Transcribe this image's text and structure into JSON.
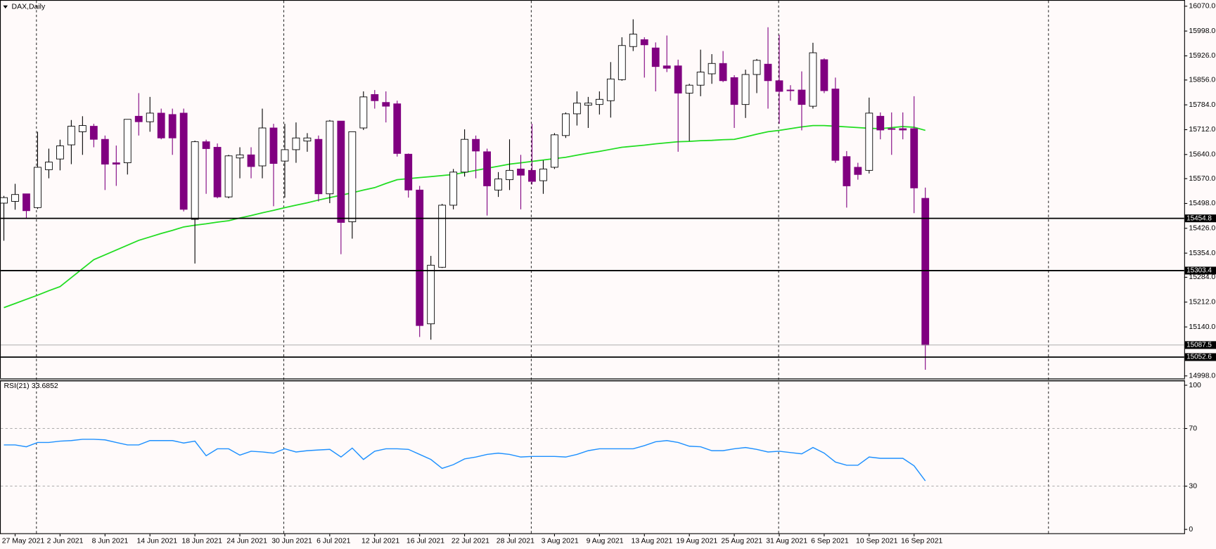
{
  "chart_data": [
    {
      "type": "candlestick",
      "title": "DAX,Daily",
      "categories": [
        null,
        "27 May 2021",
        null,
        null,
        null,
        "2 Jun 2021",
        null,
        null,
        null,
        "8 Jun 2021",
        null,
        null,
        null,
        "14 Jun 2021",
        null,
        null,
        null,
        "18 Jun 2021",
        null,
        null,
        null,
        "24 Jun 2021",
        null,
        null,
        null,
        "30 Jun 2021",
        null,
        null,
        null,
        "6 Jul 2021",
        null,
        null,
        null,
        "12 Jul 2021",
        null,
        null,
        null,
        "16 Jul 2021",
        null,
        null,
        null,
        "22 Jul 2021",
        null,
        null,
        null,
        "28 Jul 2021",
        null,
        null,
        null,
        "3 Aug 2021",
        null,
        null,
        null,
        "9 Aug 2021",
        null,
        null,
        null,
        "13 Aug 2021",
        null,
        null,
        null,
        "19 Aug 2021",
        null,
        null,
        null,
        "25 Aug 2021",
        null,
        null,
        null,
        "31 Aug 2021",
        null,
        null,
        null,
        "6 Sep 2021",
        null,
        null,
        null,
        "10 Sep 2021",
        null,
        null,
        null,
        "16 Sep 2021",
        null
      ],
      "open": [
        15499,
        15504,
        15526,
        15486,
        15596,
        15627,
        15668,
        15706,
        15722,
        15684,
        15616,
        15616,
        15751,
        15735,
        15760,
        15756,
        15760,
        15452,
        15677,
        15661,
        15517,
        15630,
        15639,
        15607,
        15717,
        15621,
        15654,
        15679,
        15684,
        15526,
        15737,
        15445,
        15717,
        15814,
        15791,
        15787,
        15641,
        15537,
        15149,
        15313,
        15493,
        15589,
        15684,
        15648,
        15537,
        15567,
        15598,
        15594,
        15564,
        15603,
        15695,
        15758,
        15783,
        15785,
        15796,
        15857,
        15953,
        15973,
        15949,
        15897,
        15897,
        15818,
        15841,
        15874,
        15904,
        15863,
        15785,
        15872,
        15902,
        15854,
        15827,
        15827,
        15780,
        15915,
        15830,
        15634,
        15603,
        15594,
        15751,
        15715,
        15715,
        15715,
        15513
      ],
      "high": [
        15520,
        15555,
        15526,
        15706,
        15657,
        15683,
        15740,
        15751,
        15729,
        15695,
        15666,
        15742,
        15818,
        15807,
        15773,
        15773,
        15773,
        15680,
        15683,
        15672,
        15639,
        15661,
        15661,
        15773,
        15729,
        15729,
        15733,
        15702,
        15695,
        15740,
        15737,
        15706,
        15823,
        15827,
        15823,
        15796,
        15643,
        15549,
        15346,
        15497,
        15598,
        15713,
        15695,
        15657,
        15589,
        15684,
        15639,
        15729,
        15623,
        15702,
        15762,
        15823,
        15807,
        15823,
        15908,
        15980,
        16032,
        15980,
        15965,
        15985,
        15915,
        15845,
        15944,
        15931,
        15940,
        15870,
        15886,
        15917,
        16009,
        15987,
        15841,
        15881,
        15964,
        15919,
        15863,
        15650,
        15616,
        15805,
        15762,
        15762,
        15762,
        15809,
        15544
      ],
      "low": [
        15390,
        15480,
        15455,
        15482,
        15571,
        15594,
        15612,
        15639,
        15661,
        15537,
        15549,
        15582,
        15695,
        15706,
        15684,
        15639,
        15475,
        15324,
        15526,
        15513,
        15513,
        15571,
        15571,
        15571,
        15490,
        15515,
        15616,
        15648,
        15504,
        15499,
        15351,
        15396,
        15711,
        15773,
        15733,
        15634,
        15515,
        15111,
        15103,
        15311,
        15481,
        15576,
        15571,
        15463,
        15517,
        15537,
        15481,
        15553,
        15526,
        15598,
        15688,
        15724,
        15717,
        15756,
        15747,
        15854,
        15940,
        15863,
        15823,
        15879,
        15648,
        15679,
        15809,
        15845,
        15850,
        15717,
        15746,
        15818,
        15773,
        15729,
        15796,
        15710,
        15773,
        15818,
        15616,
        15486,
        15567,
        15585,
        15684,
        15639,
        15684,
        15470,
        15016
      ],
      "close": [
        15515,
        15524,
        15477,
        15603,
        15618,
        15665,
        15722,
        15724,
        15684,
        15612,
        15612,
        15742,
        15735,
        15760,
        15688,
        15688,
        15481,
        15677,
        15657,
        15517,
        15636,
        15639,
        15605,
        15717,
        15614,
        15654,
        15688,
        15688,
        15526,
        15737,
        15443,
        15706,
        15807,
        15796,
        15780,
        15643,
        15537,
        15144,
        15319,
        15493,
        15589,
        15684,
        15650,
        15549,
        15569,
        15594,
        15580,
        15562,
        15598,
        15697,
        15758,
        15789,
        15789,
        15800,
        15859,
        15956,
        15989,
        15958,
        15895,
        15890,
        15818,
        15841,
        15879,
        15904,
        15854,
        15785,
        15872,
        15913,
        15854,
        15823,
        15825,
        15785,
        15935,
        15825,
        15623,
        15549,
        15582,
        15760,
        15711,
        15713,
        15711,
        15543,
        15087.5
      ],
      "up_color": "#ffffff",
      "down_color": "#800080",
      "ma": {
        "color": "#22dd22",
        "values": [
          15196,
          15208,
          15220,
          15232,
          15245,
          15257,
          15283,
          15309,
          15335,
          15349,
          15363,
          15377,
          15391,
          15401,
          15411,
          15420,
          15430,
          15435,
          15439,
          15444,
          15448,
          15456,
          15463,
          15471,
          15478,
          15486,
          15493,
          15500,
          15508,
          15515,
          15522,
          15529,
          15537,
          15544,
          15556,
          15567,
          15570,
          15573,
          15576,
          15579,
          15582,
          15588,
          15594,
          15600,
          15606,
          15612,
          15616,
          15620,
          15624,
          15628,
          15632,
          15638,
          15644,
          15649,
          15655,
          15661,
          15664,
          15667,
          15671,
          15674,
          15677,
          15678,
          15680,
          15681,
          15683,
          15684,
          15691,
          15699,
          15706,
          15710,
          15715,
          15720,
          15724,
          15724,
          15722,
          15720,
          15718,
          15716,
          15715,
          15718,
          15721,
          15719,
          15710
        ]
      },
      "levels": [
        15454.8,
        15303.4,
        15052.6
      ],
      "ylim": [
        14989,
        16088
      ],
      "yticks": [
        {
          "value": 16070,
          "label": "16070.0"
        },
        {
          "value": 15998,
          "label": "15998.0"
        },
        {
          "value": 15926,
          "label": "15926.0"
        },
        {
          "value": 15856,
          "label": "15856.0"
        },
        {
          "value": 15784,
          "label": "15784.0"
        },
        {
          "value": 15712,
          "label": "15712.0"
        },
        {
          "value": 15640,
          "label": "15640.0"
        },
        {
          "value": 15570,
          "label": "15570.0"
        },
        {
          "value": 15498,
          "label": "15498.0"
        },
        {
          "value": 15426,
          "label": "15426.0"
        },
        {
          "value": 15354,
          "label": "15354.0"
        },
        {
          "value": 15284,
          "label": "15284.0"
        },
        {
          "value": 15212,
          "label": "15212.0"
        },
        {
          "value": 15140,
          "label": "15140.0"
        },
        {
          "value": 14998,
          "label": "14998.0"
        }
      ]
    },
    {
      "type": "line",
      "title": "RSI(21)",
      "color": "#1e90ff",
      "values": [
        58.6,
        58.6,
        57.3,
        60.3,
        60.3,
        61.2,
        61.6,
        62.5,
        62.5,
        62.1,
        60.3,
        58.6,
        58.6,
        61.6,
        61.6,
        61.6,
        59.9,
        61.2,
        51.1,
        55.9,
        55.9,
        51.5,
        54.2,
        53.7,
        52.9,
        55.9,
        53.7,
        54.6,
        55.1,
        55.5,
        50.2,
        56.4,
        48.5,
        54.2,
        55.9,
        55.9,
        55.5,
        52.0,
        48.5,
        42.3,
        44.9,
        48.9,
        50.2,
        52.0,
        52.9,
        52.0,
        50.2,
        50.6,
        50.6,
        50.6,
        50.2,
        52.0,
        54.6,
        55.9,
        55.9,
        55.9,
        55.9,
        58.1,
        60.8,
        61.6,
        60.3,
        57.7,
        57.3,
        54.6,
        54.6,
        55.9,
        56.8,
        55.5,
        53.7,
        54.2,
        53.3,
        52.4,
        56.8,
        52.9,
        46.7,
        44.5,
        44.5,
        50.2,
        49.3,
        49.3,
        49.3,
        44.1,
        33.6852
      ],
      "levels": [
        70,
        30
      ],
      "ylim": [
        0,
        100
      ],
      "yticks": [
        100,
        70,
        30,
        0
      ]
    }
  ]
}
